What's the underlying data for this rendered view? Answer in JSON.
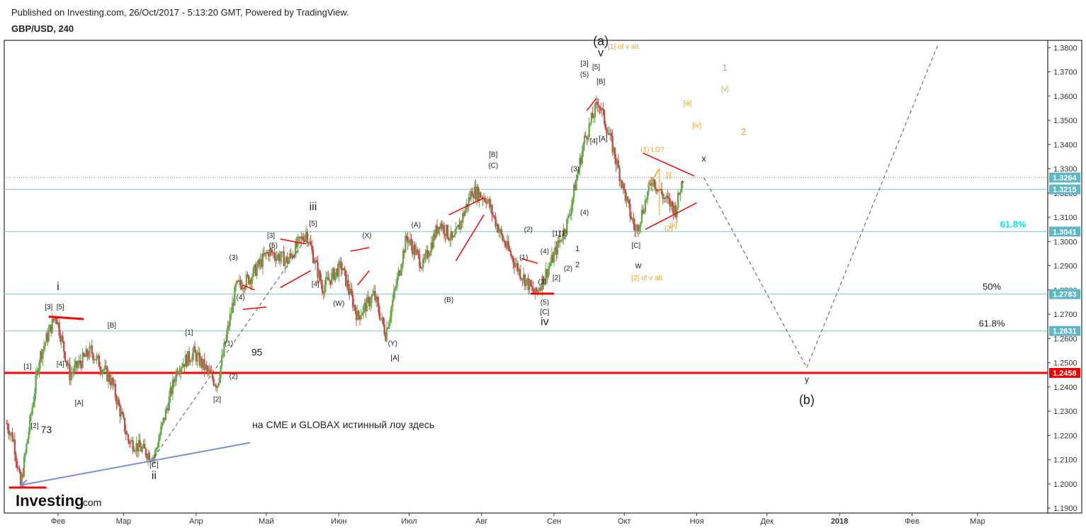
{
  "header": {
    "published": "Published on Investing.com, 26/Oct/2017 - 5:13:20 GMT, Powered by TradingView.",
    "symbol": "GBP/USD, 240"
  },
  "logo": {
    "brand": "Investing",
    "suffix": ".com"
  },
  "colors": {
    "up": "#6aa84f",
    "down": "#c0504d",
    "level": "#7fc4cc",
    "red": "#ff0000",
    "orange": "#f0a030",
    "blue_line": "#7e8fcf",
    "fib_cyan": "#00e5ff",
    "price_tag": "#5fb7c6",
    "price_tag_red": "#ee0000"
  },
  "chart_data": {
    "type": "line",
    "series_name": "GBP/USD",
    "x": [
      "2017-01-10",
      "2017-01-13",
      "2017-01-16",
      "2017-01-24",
      "2017-01-31",
      "2017-02-06",
      "2017-02-15",
      "2017-02-24",
      "2017-03-03",
      "2017-03-14",
      "2017-03-24",
      "2017-03-31",
      "2017-04-10",
      "2017-04-18",
      "2017-04-24",
      "2017-05-02",
      "2017-05-10",
      "2017-05-18",
      "2017-05-25",
      "2017-06-02",
      "2017-06-09",
      "2017-06-16",
      "2017-06-21",
      "2017-06-30",
      "2017-07-07",
      "2017-07-14",
      "2017-07-20",
      "2017-07-28",
      "2017-08-03",
      "2017-08-10",
      "2017-08-17",
      "2017-08-24",
      "2017-08-31",
      "2017-09-07",
      "2017-09-14",
      "2017-09-20",
      "2017-09-26",
      "2017-10-03",
      "2017-10-06",
      "2017-10-13",
      "2017-10-18",
      "2017-10-23",
      "2017-10-26"
    ],
    "values": [
      1.225,
      1.218,
      1.199,
      1.252,
      1.27,
      1.245,
      1.255,
      1.242,
      1.218,
      1.211,
      1.248,
      1.254,
      1.241,
      1.281,
      1.285,
      1.296,
      1.292,
      1.304,
      1.281,
      1.29,
      1.269,
      1.278,
      1.262,
      1.302,
      1.29,
      1.308,
      1.3,
      1.321,
      1.318,
      1.301,
      1.288,
      1.278,
      1.292,
      1.309,
      1.342,
      1.358,
      1.339,
      1.313,
      1.304,
      1.326,
      1.318,
      1.313,
      1.3264
    ],
    "ylim": [
      1.188,
      1.383
    ],
    "y_ticks": [
      "1.1900",
      "1.2000",
      "1.2100",
      "1.2200",
      "1.2300",
      "1.2400",
      "1.2500",
      "1.2600",
      "1.2700",
      "1.2800",
      "1.2900",
      "1.3000",
      "1.3100",
      "1.3200",
      "1.3300",
      "1.3400",
      "1.3500",
      "1.3600",
      "1.3700",
      "1.3800"
    ],
    "x_ticks": [
      "Фев",
      "Мар",
      "Апр",
      "Май",
      "Июн",
      "Июл",
      "Авг",
      "Сен",
      "Окт",
      "Ноя",
      "Дек",
      "2018",
      "Фев",
      "Мар"
    ],
    "x_tick_dates": [
      "2017-02-01",
      "2017-03-01",
      "2017-04-01",
      "2017-05-01",
      "2017-06-01",
      "2017-07-01",
      "2017-08-01",
      "2017-09-01",
      "2017-10-01",
      "2017-11-01",
      "2017-12-01",
      "2018-01-01",
      "2018-02-01",
      "2018-03-01"
    ],
    "x_range": [
      "2017-01-09",
      "2018-03-31"
    ],
    "price_tags": [
      {
        "value": 1.3264,
        "label": "1.3264",
        "style": "teal"
      },
      {
        "value": 1.3215,
        "label": "1.3215",
        "style": "teal"
      },
      {
        "value": 1.3041,
        "label": "1.3041",
        "style": "teal"
      },
      {
        "value": 1.2783,
        "label": "1.2783",
        "style": "teal"
      },
      {
        "value": 1.2631,
        "label": "1.2631",
        "style": "teal"
      },
      {
        "value": 1.2458,
        "label": "1.2458",
        "style": "red"
      }
    ],
    "horizontal_levels": [
      1.3215,
      1.3041,
      1.2783,
      1.2631
    ],
    "support_level": 1.2458,
    "current_price_line": 1.3264,
    "fib_labels": [
      {
        "label": "61.8%",
        "value": 1.3041,
        "color": "cyan"
      },
      {
        "label": "50%",
        "value": 1.2783,
        "color": "dark"
      },
      {
        "label": "61.8%",
        "value": 1.2631,
        "color": "dark"
      }
    ],
    "projection": [
      {
        "date": "2017-11-04",
        "value": 1.3264
      },
      {
        "date": "2017-12-18",
        "value": 1.248
      },
      {
        "date": "2018-02-12",
        "value": 1.381
      }
    ],
    "wave_labels": [
      {
        "t": "i",
        "date": "2017-02-01",
        "value": 1.28,
        "c": "dark",
        "s": 16
      },
      {
        "t": "[3]",
        "date": "2017-01-28",
        "value": 1.272,
        "c": "dark",
        "s": 10
      },
      {
        "t": "[5]",
        "date": "2017-02-02",
        "value": 1.272,
        "c": "dark",
        "s": 10
      },
      {
        "t": "[1]",
        "date": "2017-01-19",
        "value": 1.2475,
        "c": "dark",
        "s": 10
      },
      {
        "t": "[4]",
        "date": "2017-02-02",
        "value": 1.2485,
        "c": "dark",
        "s": 10
      },
      {
        "t": "[2]",
        "date": "2017-01-22",
        "value": 1.223,
        "c": "dark",
        "s": 10
      },
      {
        "t": "73",
        "date": "2017-01-27",
        "value": 1.221,
        "c": "dark",
        "s": 14
      },
      {
        "t": "[A]",
        "date": "2017-02-10",
        "value": 1.2325,
        "c": "dark",
        "s": 10
      },
      {
        "t": "[B]",
        "date": "2017-02-24",
        "value": 1.2645,
        "c": "dark",
        "s": 10
      },
      {
        "t": "[C]",
        "date": "2017-03-14",
        "value": 1.207,
        "c": "dark",
        "s": 10
      },
      {
        "t": "ii",
        "date": "2017-03-14",
        "value": 1.202,
        "c": "dark",
        "s": 16
      },
      {
        "t": "[1]",
        "date": "2017-03-29",
        "value": 1.2615,
        "c": "dark",
        "s": 10
      },
      {
        "t": "[2]",
        "date": "2017-04-10",
        "value": 1.234,
        "c": "dark",
        "s": 10
      },
      {
        "t": "(1)",
        "date": "2017-04-15",
        "value": 1.257,
        "c": "dark",
        "s": 10
      },
      {
        "t": "(2)",
        "date": "2017-04-17",
        "value": 1.2435,
        "c": "dark",
        "s": 10
      },
      {
        "t": "(3)",
        "date": "2017-04-17",
        "value": 1.2925,
        "c": "dark",
        "s": 10
      },
      {
        "t": "(4)",
        "date": "2017-04-20",
        "value": 1.276,
        "c": "dark",
        "s": 10
      },
      {
        "t": "95",
        "date": "2017-04-27",
        "value": 1.253,
        "c": "dark",
        "s": 14
      },
      {
        "t": "[3]",
        "date": "2017-05-03",
        "value": 1.3015,
        "c": "dark",
        "s": 10
      },
      {
        "t": "(5)",
        "date": "2017-05-04",
        "value": 1.2975,
        "c": "dark",
        "s": 10
      },
      {
        "t": "[5]",
        "date": "2017-05-21",
        "value": 1.3065,
        "c": "dark",
        "s": 10
      },
      {
        "t": "iii",
        "date": "2017-05-21",
        "value": 1.313,
        "c": "dark",
        "s": 16
      },
      {
        "t": "[4]",
        "date": "2017-05-22",
        "value": 1.2815,
        "c": "dark",
        "s": 10
      },
      {
        "t": "(W)",
        "date": "2017-06-01",
        "value": 1.2735,
        "c": "dark",
        "s": 10
      },
      {
        "t": "(X)",
        "date": "2017-06-13",
        "value": 1.3015,
        "c": "dark",
        "s": 10
      },
      {
        "t": "(Y)",
        "date": "2017-06-24",
        "value": 1.257,
        "c": "dark",
        "s": 10
      },
      {
        "t": "[A]",
        "date": "2017-06-25",
        "value": 1.251,
        "c": "dark",
        "s": 10
      },
      {
        "t": "(A)",
        "date": "2017-07-04",
        "value": 1.306,
        "c": "dark",
        "s": 10
      },
      {
        "t": "(B)",
        "date": "2017-07-18",
        "value": 1.275,
        "c": "dark",
        "s": 10
      },
      {
        "t": "[B]",
        "date": "2017-08-06",
        "value": 1.335,
        "c": "dark",
        "s": 10
      },
      {
        "t": "(C)",
        "date": "2017-08-06",
        "value": 1.3305,
        "c": "dark",
        "s": 10
      },
      {
        "t": "(2)",
        "date": "2017-08-21",
        "value": 1.304,
        "c": "dark",
        "s": 10
      },
      {
        "t": "(1)",
        "date": "2017-08-19",
        "value": 1.2925,
        "c": "dark",
        "s": 10
      },
      {
        "t": "(4)",
        "date": "2017-08-28",
        "value": 1.295,
        "c": "dark",
        "s": 10
      },
      {
        "t": "(3)",
        "date": "2017-08-27",
        "value": 1.2825,
        "c": "dark",
        "s": 10
      },
      {
        "t": "(5)",
        "date": "2017-08-28",
        "value": 1.274,
        "c": "dark",
        "s": 10
      },
      {
        "t": "[C]",
        "date": "2017-08-28",
        "value": 1.27,
        "c": "dark",
        "s": 10
      },
      {
        "t": "iv",
        "date": "2017-08-28",
        "value": 1.2655,
        "c": "dark",
        "s": 16
      },
      {
        "t": "[2]",
        "date": "2017-09-02",
        "value": 1.284,
        "c": "dark",
        "s": 10
      },
      {
        "t": "(2)",
        "date": "2017-09-07",
        "value": 1.288,
        "c": "dark",
        "s": 10
      },
      {
        "t": "[1]",
        "date": "2017-09-02",
        "value": 1.3025,
        "c": "dark",
        "s": 10
      },
      {
        "t": "(1)",
        "date": "2017-09-05",
        "value": 1.3025,
        "c": "dark",
        "s": 10
      },
      {
        "t": "1",
        "date": "2017-09-11",
        "value": 1.296,
        "c": "dark",
        "s": 11
      },
      {
        "t": "2",
        "date": "2017-09-11",
        "value": 1.2895,
        "c": "dark",
        "s": 11
      },
      {
        "t": "(3)",
        "date": "2017-09-10",
        "value": 1.329,
        "c": "dark",
        "s": 10
      },
      {
        "t": "(4)",
        "date": "2017-09-14",
        "value": 1.311,
        "c": "dark",
        "s": 10
      },
      {
        "t": "[3]",
        "date": "2017-09-14",
        "value": 1.3725,
        "c": "dark",
        "s": 10
      },
      {
        "t": "(5)",
        "date": "2017-09-14",
        "value": 1.368,
        "c": "dark",
        "s": 10
      },
      {
        "t": "[5]",
        "date": "2017-09-19",
        "value": 1.371,
        "c": "dark",
        "s": 10
      },
      {
        "t": "[B]",
        "date": "2017-09-21",
        "value": 1.365,
        "c": "dark",
        "s": 10
      },
      {
        "t": "[4]",
        "date": "2017-09-18",
        "value": 1.3405,
        "c": "dark",
        "s": 10
      },
      {
        "t": "[A]",
        "date": "2017-09-22",
        "value": 1.3415,
        "c": "dark",
        "s": 10
      },
      {
        "t": "(a)",
        "date": "2017-09-21",
        "value": 1.381,
        "c": "dark",
        "s": 18
      },
      {
        "t": "v",
        "date": "2017-09-21",
        "value": 1.3765,
        "c": "dark",
        "s": 16
      },
      {
        "t": "[1] of v alt.",
        "date": "2017-10-01",
        "value": 1.3795,
        "c": "orange",
        "s": 10
      },
      {
        "t": "1",
        "date": "2017-11-13",
        "value": 1.3705,
        "c": "orange",
        "s": 13
      },
      {
        "t": "[v]",
        "date": "2017-11-13",
        "value": 1.362,
        "c": "orange",
        "s": 10
      },
      {
        "t": "[iii]",
        "date": "2017-10-28",
        "value": 1.356,
        "c": "orange",
        "s": 10
      },
      {
        "t": "[iv]",
        "date": "2017-11-01",
        "value": 1.347,
        "c": "orange",
        "s": 10
      },
      {
        "t": "2",
        "date": "2017-11-21",
        "value": 1.344,
        "c": "orange",
        "s": 13
      },
      {
        "t": "(1) LD?",
        "date": "2017-10-13",
        "value": 1.337,
        "c": "orange",
        "s": 10
      },
      {
        "t": "[i]",
        "date": "2017-10-20",
        "value": 1.3265,
        "c": "orange",
        "s": 10
      },
      {
        "t": "(2)",
        "date": "2017-10-20",
        "value": 1.3045,
        "c": "orange",
        "s": 10
      },
      {
        "t": "[ii]",
        "date": "2017-10-22",
        "value": 1.306,
        "c": "orange",
        "s": 10
      },
      {
        "t": "x",
        "date": "2017-11-04",
        "value": 1.333,
        "c": "dark",
        "s": 13
      },
      {
        "t": "[C]",
        "date": "2017-10-06",
        "value": 1.2975,
        "c": "dark",
        "s": 10
      },
      {
        "t": "w",
        "date": "2017-10-07",
        "value": 1.289,
        "c": "dark",
        "s": 12
      },
      {
        "t": "[2] of v alt.",
        "date": "2017-10-11",
        "value": 1.284,
        "c": "orange",
        "s": 10
      },
      {
        "t": "y",
        "date": "2017-12-18",
        "value": 1.242,
        "c": "dark",
        "s": 12
      },
      {
        "t": "(b)",
        "date": "2017-12-18",
        "value": 1.233,
        "c": "dark",
        "s": 18
      }
    ],
    "annotation": {
      "text": "на CME и GLOBAX  истинный лоу здесь",
      "date": "2017-04-25",
      "value": 1.223
    }
  }
}
